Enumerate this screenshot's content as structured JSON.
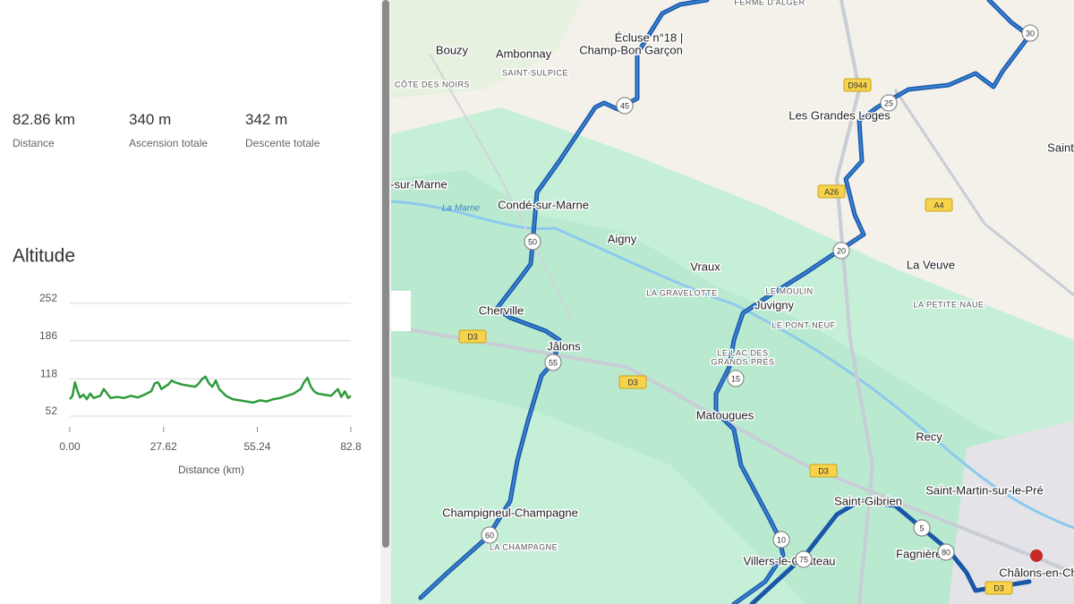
{
  "stats": [
    {
      "value": "82.86 km",
      "label": "Distance"
    },
    {
      "value": "340 m",
      "label": "Ascension totale"
    },
    {
      "value": "342 m",
      "label": "Descente totale"
    }
  ],
  "chart_data": {
    "type": "line",
    "title": "Altitude",
    "x_label": "Distance (km)",
    "color": "#2e9b3c",
    "grid": true,
    "xlim": [
      0,
      82.8
    ],
    "ylim": [
      52,
      252
    ],
    "xticks": [
      {
        "value": 0,
        "label": "0.00"
      },
      27.62,
      55.24,
      82.8
    ],
    "yticks": [
      52,
      118,
      186,
      252
    ],
    "x": [
      0,
      0.8,
      1.5,
      2.2,
      3,
      4,
      5,
      6,
      7,
      8,
      9,
      10,
      11,
      12,
      14,
      16,
      18,
      20,
      22,
      24,
      25,
      26,
      27,
      28,
      29,
      30,
      31,
      33,
      35,
      37,
      38,
      39,
      40,
      41,
      42,
      43,
      44,
      46,
      48,
      50,
      52,
      54,
      56,
      58,
      60,
      62,
      64,
      66,
      68,
      69,
      70,
      71,
      72,
      73,
      75,
      77,
      78,
      79,
      80,
      81,
      82,
      82.8
    ],
    "values": [
      82,
      88,
      112,
      98,
      85,
      90,
      82,
      92,
      84,
      86,
      88,
      100,
      92,
      84,
      86,
      84,
      88,
      85,
      90,
      96,
      110,
      112,
      100,
      104,
      108,
      115,
      112,
      108,
      106,
      104,
      110,
      118,
      122,
      110,
      104,
      115,
      100,
      88,
      82,
      80,
      78,
      76,
      80,
      78,
      82,
      84,
      88,
      92,
      100,
      112,
      120,
      104,
      96,
      92,
      90,
      88,
      94,
      100,
      86,
      96,
      84,
      88
    ]
  },
  "map": {
    "places": [
      "Bouzy",
      "Ambonnay",
      "SAINT-SULPICE",
      "CÔTE DES NOIRS",
      "Écluse n°18 |",
      "Champ-Bon Garçon",
      "FERME D'ALGER",
      "Les Grandes Loges",
      "Saint",
      "-sur-Marne",
      "La Marne",
      "Condé-sur-Marne",
      "Aigny",
      "Vraux",
      "LA GRAVELOTTE",
      "LE MOULIN",
      "Juvigny",
      "LE PONT NEUF",
      "LE LAC DES",
      "GRANDS PRÉS",
      "Cherville",
      "Jâlons",
      "Matougues",
      "La Veuve",
      "LA PETITE NAUE",
      "Recy",
      "Saint-Martin-sur-le-Pré",
      "Saint-Gibrien",
      "Fagnières",
      "Champigneul-Champagne",
      "LA CHAMPAGNE",
      "Villers-le-Château",
      "Châlons-en-Ch"
    ],
    "roads": [
      "D944",
      "A26",
      "A4",
      "D3",
      "D3",
      "D3",
      "D3"
    ],
    "markers": [
      45,
      50,
      55,
      60,
      30,
      25,
      20,
      15,
      10,
      75,
      5,
      80
    ]
  }
}
